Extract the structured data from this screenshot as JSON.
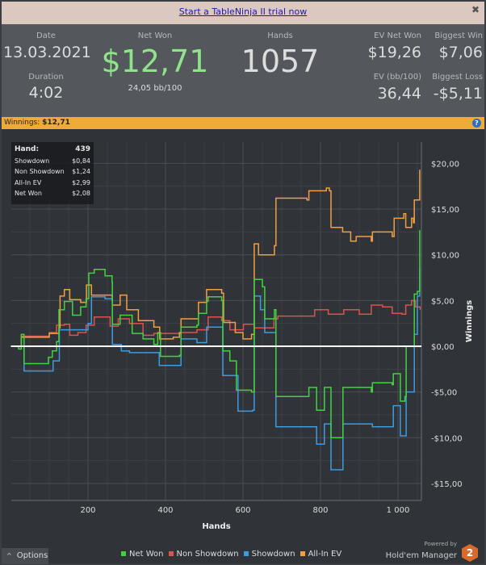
{
  "banner": {
    "link": "Start a TableNinja II trial now",
    "close": "✖"
  },
  "stats": {
    "date_label": "Date",
    "date": "13.03.2021",
    "duration_label": "Duration",
    "duration": "4:02",
    "net_won_label": "Net Won",
    "net_won": "$12,71",
    "bb100": "24,05 bb/100",
    "hands_label": "Hands",
    "hands": "1057",
    "ev_net_won_label": "EV Net Won",
    "ev_net_won": "$19,26",
    "biggest_win_label": "Biggest Win",
    "biggest_win": "$7,06",
    "ev_bb_label": "EV (bb/100)",
    "ev_bb": "36,44",
    "biggest_loss_label": "Biggest Loss",
    "biggest_loss": "-$5,11"
  },
  "winnings_bar": {
    "label": "Winnings:",
    "value": "$12,71",
    "help": "?"
  },
  "tooltip": [
    {
      "k": "Hand:",
      "v": "439"
    },
    {
      "k": "Showdown",
      "v": "$0,84"
    },
    {
      "k": "Non Showdown",
      "v": "$1,24"
    },
    {
      "k": "All-In EV",
      "v": "$2,99"
    },
    {
      "k": "Net Won",
      "v": "$2,08"
    }
  ],
  "options_label": "Options",
  "powered_by": "Powered by",
  "brand": "Hold'em Manager",
  "brand_badge": "2",
  "chart_data": {
    "type": "line",
    "xlabel": "Hands",
    "ylabel": "Winnings",
    "xlim": [
      0,
      1060
    ],
    "ylim": [
      -16.5,
      21
    ],
    "xticks": [
      200,
      400,
      600,
      800,
      1000
    ],
    "xtick_labels": [
      "200",
      "400",
      "600",
      "800",
      "1 000"
    ],
    "yticks": [
      -15,
      -10,
      -5,
      0,
      5,
      10,
      15,
      20
    ],
    "ytick_labels": [
      "-$15,00",
      "-$10,00",
      "-$5,00",
      "$0,00",
      "$5,00",
      "$10,00",
      "$15,00",
      "$20,00"
    ],
    "grid": true,
    "legend": "bottom",
    "series": [
      {
        "name": "Net Won",
        "color": "#3fd43f",
        "points": [
          [
            0,
            0
          ],
          [
            21,
            -0.3
          ],
          [
            28,
            1.3
          ],
          [
            35,
            -1.9
          ],
          [
            98,
            -1.2
          ],
          [
            108,
            -0.5
          ],
          [
            119,
            0.5
          ],
          [
            125,
            4.0
          ],
          [
            139,
            4.9
          ],
          [
            153,
            4.9
          ],
          [
            160,
            3.4
          ],
          [
            181,
            4.3
          ],
          [
            195,
            5.2
          ],
          [
            202,
            8.0
          ],
          [
            216,
            8.4
          ],
          [
            244,
            7.7
          ],
          [
            262,
            7.0
          ],
          [
            263,
            2.4
          ],
          [
            283,
            3.4
          ],
          [
            314,
            1.4
          ],
          [
            342,
            0.8
          ],
          [
            370,
            0.2
          ],
          [
            380,
            1.5
          ],
          [
            387,
            -1.1
          ],
          [
            436,
            -1.0
          ],
          [
            440,
            2.1
          ],
          [
            481,
            2.3
          ],
          [
            485,
            3.6
          ],
          [
            506,
            4.9
          ],
          [
            510,
            5.4
          ],
          [
            545,
            5.0
          ],
          [
            548,
            -0.5
          ],
          [
            566,
            -1.6
          ],
          [
            583,
            -4.8
          ],
          [
            622,
            -5.0
          ],
          [
            629,
            7.3
          ],
          [
            650,
            6.5
          ],
          [
            656,
            3.0
          ],
          [
            681,
            4.0
          ],
          [
            685,
            -5.5
          ],
          [
            765,
            -5.5
          ],
          [
            770,
            -4.5
          ],
          [
            788,
            -4.5
          ],
          [
            790,
            -7.0
          ],
          [
            806,
            -7.0
          ],
          [
            810,
            -4.5
          ],
          [
            823,
            -4.5
          ],
          [
            827,
            -10.0
          ],
          [
            855,
            -10.0
          ],
          [
            858,
            -4.5
          ],
          [
            931,
            -5.0
          ],
          [
            934,
            -4.0
          ],
          [
            985,
            -4.2
          ],
          [
            988,
            -3.0
          ],
          [
            1003,
            -3.0
          ],
          [
            1006,
            -6.0
          ],
          [
            1018,
            -5.5
          ],
          [
            1021,
            0.0
          ],
          [
            1035,
            0.0
          ],
          [
            1042,
            5.7
          ],
          [
            1050,
            6.0
          ],
          [
            1056,
            12.7
          ]
        ]
      },
      {
        "name": "Non Showdown",
        "color": "#d9534f",
        "points": [
          [
            0,
            0
          ],
          [
            28,
            1.1
          ],
          [
            100,
            1.5
          ],
          [
            119,
            2.3
          ],
          [
            139,
            2.4
          ],
          [
            153,
            1.2
          ],
          [
            174,
            1.5
          ],
          [
            195,
            2.3
          ],
          [
            216,
            3.2
          ],
          [
            257,
            2.2
          ],
          [
            278,
            3.0
          ],
          [
            307,
            2.5
          ],
          [
            342,
            1.2
          ],
          [
            370,
            1.4
          ],
          [
            440,
            1.5
          ],
          [
            481,
            1.8
          ],
          [
            510,
            3.2
          ],
          [
            545,
            2.8
          ],
          [
            566,
            1.8
          ],
          [
            601,
            2.4
          ],
          [
            629,
            2.0
          ],
          [
            650,
            2.0
          ],
          [
            680,
            3.0
          ],
          [
            690,
            3.3
          ],
          [
            780,
            3.3
          ],
          [
            785,
            4.0
          ],
          [
            820,
            3.5
          ],
          [
            860,
            4.0
          ],
          [
            900,
            3.5
          ],
          [
            931,
            4.5
          ],
          [
            960,
            4.3
          ],
          [
            985,
            3.6
          ],
          [
            1010,
            3.5
          ],
          [
            1020,
            4.5
          ],
          [
            1035,
            5.0
          ],
          [
            1045,
            4.3
          ],
          [
            1057,
            4.0
          ]
        ]
      },
      {
        "name": "Showdown",
        "color": "#3d9be0",
        "points": [
          [
            0,
            0
          ],
          [
            28,
            0
          ],
          [
            35,
            -2.7
          ],
          [
            108,
            -2.7
          ],
          [
            110,
            -1.6
          ],
          [
            125,
            -1.6
          ],
          [
            126,
            1.8
          ],
          [
            200,
            2.5
          ],
          [
            209,
            5.4
          ],
          [
            244,
            5.2
          ],
          [
            262,
            5.0
          ],
          [
            263,
            0.2
          ],
          [
            286,
            -0.5
          ],
          [
            307,
            -0.7
          ],
          [
            380,
            -0.7
          ],
          [
            384,
            -2.1
          ],
          [
            436,
            -2.1
          ],
          [
            440,
            0.8
          ],
          [
            481,
            0.4
          ],
          [
            506,
            2.1
          ],
          [
            545,
            2.1
          ],
          [
            548,
            -3.2
          ],
          [
            583,
            -3.2
          ],
          [
            587,
            -7.1
          ],
          [
            625,
            -7.0
          ],
          [
            629,
            5.5
          ],
          [
            645,
            4.0
          ],
          [
            656,
            1.5
          ],
          [
            681,
            1.5
          ],
          [
            685,
            -8.8
          ],
          [
            788,
            -8.8
          ],
          [
            790,
            -10.7
          ],
          [
            806,
            -10.7
          ],
          [
            810,
            -8.5
          ],
          [
            823,
            -8.5
          ],
          [
            827,
            -13.5
          ],
          [
            855,
            -13.5
          ],
          [
            858,
            -8.5
          ],
          [
            931,
            -8.5
          ],
          [
            934,
            -8.8
          ],
          [
            985,
            -8.8
          ],
          [
            988,
            -6.5
          ],
          [
            1003,
            -6.5
          ],
          [
            1006,
            -9.8
          ],
          [
            1018,
            -9.8
          ],
          [
            1021,
            -5.0
          ],
          [
            1040,
            -5.0
          ],
          [
            1042,
            1.3
          ],
          [
            1050,
            5.5
          ],
          [
            1056,
            8.5
          ]
        ]
      },
      {
        "name": "All-In EV",
        "color": "#f0a040",
        "points": [
          [
            0,
            0
          ],
          [
            28,
            1.0
          ],
          [
            100,
            1.4
          ],
          [
            125,
            2.0
          ],
          [
            128,
            5.5
          ],
          [
            139,
            6.2
          ],
          [
            153,
            5.1
          ],
          [
            181,
            4.8
          ],
          [
            196,
            6.7
          ],
          [
            209,
            5.6
          ],
          [
            262,
            5.4
          ],
          [
            263,
            4.5
          ],
          [
            283,
            5.6
          ],
          [
            300,
            4.0
          ],
          [
            330,
            2.8
          ],
          [
            370,
            2.1
          ],
          [
            385,
            0.8
          ],
          [
            420,
            1.0
          ],
          [
            436,
            1.5
          ],
          [
            440,
            3.0
          ],
          [
            481,
            3.0
          ],
          [
            485,
            4.8
          ],
          [
            506,
            6.2
          ],
          [
            545,
            5.8
          ],
          [
            550,
            2.6
          ],
          [
            580,
            1.5
          ],
          [
            600,
            0.8
          ],
          [
            622,
            1.3
          ],
          [
            629,
            11.2
          ],
          [
            640,
            10.0
          ],
          [
            681,
            11.0
          ],
          [
            685,
            16.2
          ],
          [
            765,
            16.0
          ],
          [
            770,
            17.0
          ],
          [
            815,
            17.3
          ],
          [
            823,
            17.0
          ],
          [
            827,
            13.0
          ],
          [
            857,
            12.5
          ],
          [
            878,
            11.5
          ],
          [
            892,
            12.0
          ],
          [
            931,
            11.5
          ],
          [
            934,
            12.5
          ],
          [
            985,
            12.0
          ],
          [
            990,
            14.0
          ],
          [
            1015,
            14.5
          ],
          [
            1020,
            13.0
          ],
          [
            1035,
            14.0
          ],
          [
            1040,
            13.5
          ],
          [
            1042,
            16.0
          ],
          [
            1052,
            16.0
          ],
          [
            1056,
            19.3
          ]
        ]
      }
    ]
  }
}
